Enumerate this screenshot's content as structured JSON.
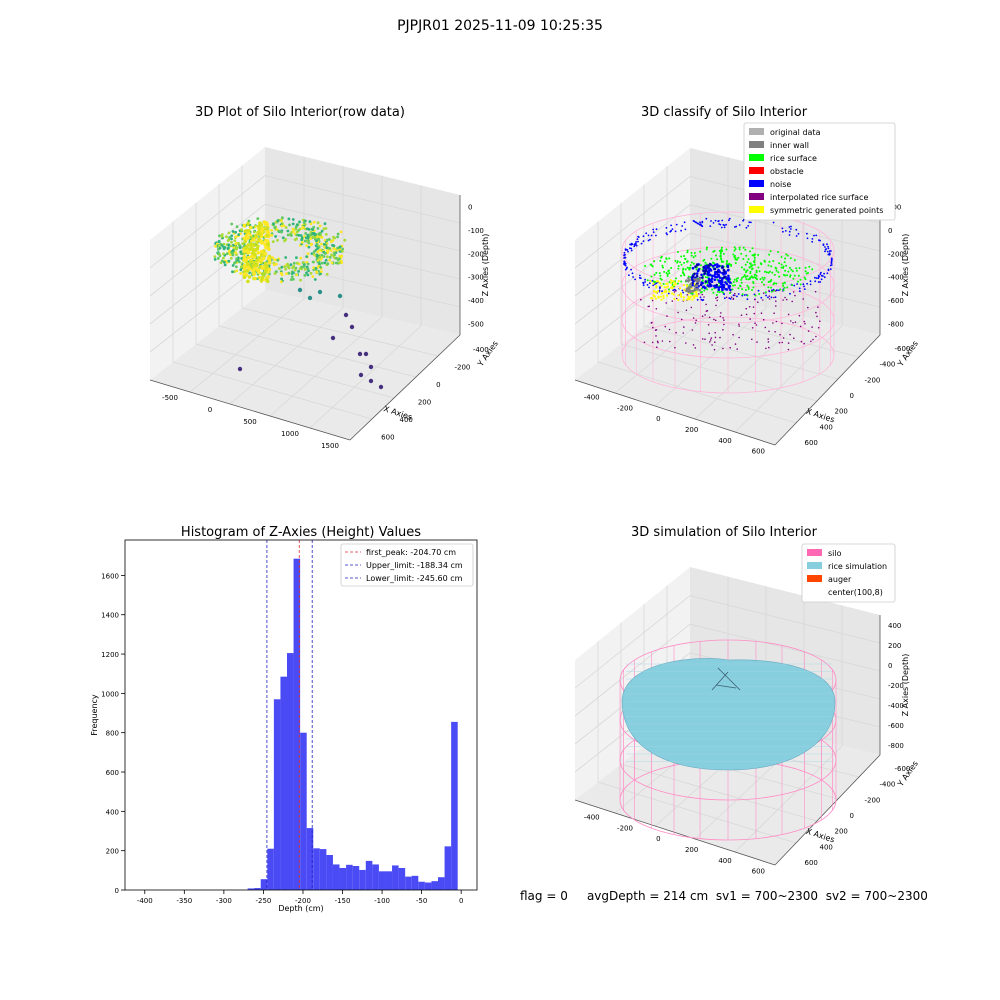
{
  "figure_title": "PJPJR01 2025-11-09 10:25:35",
  "footer": {
    "flag": "flag = 0",
    "avg_depth": "avgDepth = 214 cm",
    "sv1": "sv1 = 700~2300",
    "sv2": "sv2 = 700~2300"
  },
  "colors": {
    "hist_bar": "#4b4bf5",
    "peak_line": "#e03030",
    "limit_line": "#2020c0",
    "silo": "#ff69b4",
    "rice_simulation": "#87cedf",
    "auger": "#ff4500",
    "legend_original": "#b0b0b0",
    "legend_inner_wall": "#808080",
    "legend_rice_surface": "#00ff00",
    "legend_obstacle": "#ff0000",
    "legend_noise": "#0000ff",
    "legend_interpolated": "#800080",
    "legend_symmetric": "#ffff00"
  },
  "chart_data": [
    {
      "type": "scatter",
      "projection": "3d",
      "title": "3D Plot of Silo Interior(row data)",
      "xlabel": "X Axies",
      "ylabel": "Y Axies",
      "zlabel": "Z Axies (Depth)",
      "x_ticks": [
        "-500",
        "0",
        "500",
        "1000",
        "1500"
      ],
      "y_ticks": [
        "-400",
        "-200",
        "0",
        "200",
        "400",
        "600"
      ],
      "z_ticks": [
        "0",
        "-100",
        "-200",
        "-300",
        "-400",
        "-500"
      ],
      "colormap": "viridis",
      "grid": true
    },
    {
      "type": "scatter",
      "projection": "3d",
      "title": "3D classify of Silo Interior",
      "xlabel": "X Axies",
      "ylabel": "Y Axies",
      "zlabel": "Z Axies (Depth)",
      "x_ticks": [
        "-400",
        "-200",
        "0",
        "200",
        "400",
        "600"
      ],
      "y_ticks": [
        "-600",
        "-400",
        "-200",
        "0",
        "200",
        "400",
        "600"
      ],
      "z_ticks": [
        "200",
        "0",
        "-200",
        "-400",
        "-600",
        "-800"
      ],
      "legend": [
        "original data",
        "inner wall",
        "rice surface",
        "obstacle",
        "noise",
        "interpolated rice surface",
        "symmetric generated points"
      ],
      "legend_position": "top-right",
      "grid": true
    },
    {
      "type": "bar",
      "title": "Histogram of Z-Axies (Height) Values",
      "xlabel": "Depth (cm)",
      "ylabel": "Frequency",
      "xlim": [
        -425,
        20
      ],
      "ylim": [
        0,
        1780
      ],
      "x_ticks": [
        -400,
        -350,
        -300,
        -250,
        -200,
        -150,
        -100,
        -50,
        0
      ],
      "y_ticks": [
        0,
        200,
        400,
        600,
        800,
        1000,
        1200,
        1400,
        1600
      ],
      "bin_width": 8.3,
      "bins": [
        [
          -270,
          8
        ],
        [
          -261.7,
          10
        ],
        [
          -253.4,
          55
        ],
        [
          -245.1,
          210
        ],
        [
          -236.8,
          970
        ],
        [
          -228.5,
          1085
        ],
        [
          -220.2,
          1205
        ],
        [
          -211.9,
          1685
        ],
        [
          -203.6,
          800
        ],
        [
          -195.3,
          315
        ],
        [
          -187.0,
          212
        ],
        [
          -178.7,
          208
        ],
        [
          -170.4,
          178
        ],
        [
          -162.1,
          130
        ],
        [
          -153.8,
          112
        ],
        [
          -145.5,
          128
        ],
        [
          -137.2,
          122
        ],
        [
          -128.9,
          102
        ],
        [
          -120.6,
          148
        ],
        [
          -112.3,
          130
        ],
        [
          -104.0,
          95
        ],
        [
          -95.7,
          95
        ],
        [
          -87.4,
          125
        ],
        [
          -79.1,
          112
        ],
        [
          -70.8,
          68
        ],
        [
          -62.5,
          72
        ],
        [
          -54.2,
          42
        ],
        [
          -45.9,
          38
        ],
        [
          -37.6,
          45
        ],
        [
          -29.3,
          65
        ],
        [
          -21.0,
          222
        ],
        [
          -12.7,
          855
        ]
      ],
      "lines": [
        {
          "name": "first_peak: -204.70 cm",
          "x": -204.7,
          "role": "peak"
        },
        {
          "name": "Upper_limit: -188.34 cm",
          "x": -188.34,
          "role": "limit"
        },
        {
          "name": "Lower_limit: -245.60 cm",
          "x": -245.6,
          "role": "limit"
        }
      ],
      "legend_position": "top-right"
    },
    {
      "type": "surface",
      "projection": "3d",
      "title": "3D simulation of Silo Interior",
      "xlabel": "X Axies",
      "ylabel": "Y Axies",
      "zlabel": "Z Axies (Depth)",
      "x_ticks": [
        "-400",
        "-200",
        "0",
        "200",
        "400",
        "600"
      ],
      "y_ticks": [
        "-600",
        "-400",
        "-200",
        "0",
        "200",
        "400",
        "600"
      ],
      "z_ticks": [
        "400",
        "200",
        "0",
        "-200",
        "-400",
        "-600",
        "-800"
      ],
      "legend": [
        "silo",
        "rice simulation",
        "auger",
        "center(100,8)"
      ],
      "legend_position": "top-right",
      "grid": true
    }
  ]
}
